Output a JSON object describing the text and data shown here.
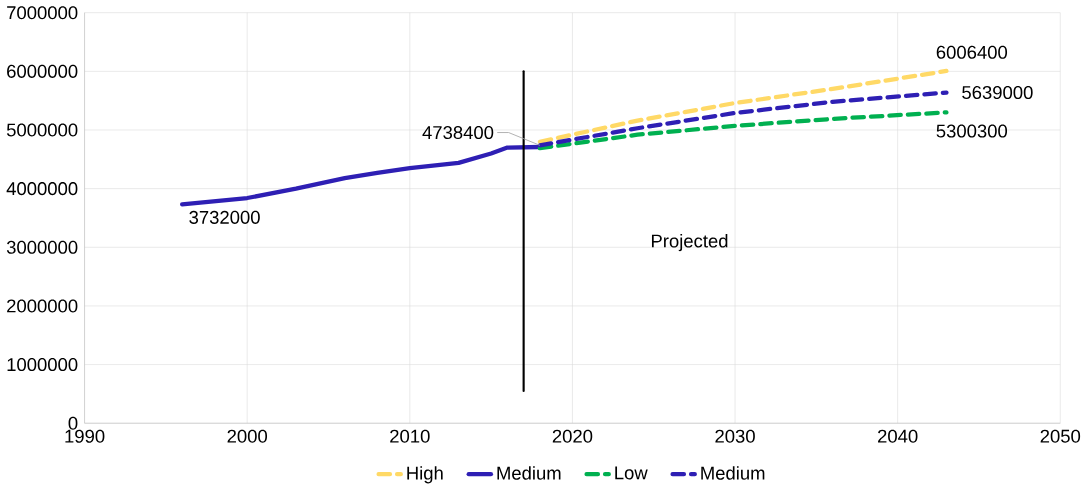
{
  "chart_data": {
    "type": "line",
    "xlim": [
      1990,
      2050
    ],
    "xticks": [
      1990,
      2000,
      2010,
      2020,
      2030,
      2040,
      2050
    ],
    "ylim": [
      0,
      7000000
    ],
    "yticks": [
      0,
      1000000,
      2000000,
      3000000,
      4000000,
      5000000,
      6000000,
      7000000
    ],
    "grid": true,
    "legend": "bottom",
    "series": [
      {
        "name": "High",
        "color": "#ffd966",
        "line_style": "dashed",
        "x": [
          2018,
          2024,
          2030,
          2036,
          2043
        ],
        "values": [
          4800000,
          5160000,
          5460000,
          5700000,
          6006400
        ]
      },
      {
        "name": "Medium",
        "color": "#2e1fb4",
        "line_style": "solid",
        "x": [
          1996,
          2000,
          2003,
          2006,
          2008,
          2010,
          2013,
          2015,
          2016,
          2018
        ],
        "values": [
          3732000,
          3840000,
          4000000,
          4180000,
          4270000,
          4350000,
          4440000,
          4600000,
          4700000,
          4710000
        ]
      },
      {
        "name": "Low",
        "color": "#00b050",
        "line_style": "dashed",
        "x": [
          2018,
          2024,
          2030,
          2036,
          2043
        ],
        "values": [
          4690000,
          4920000,
          5070000,
          5190000,
          5300300
        ]
      },
      {
        "name": "Medium",
        "color": "#2e1fb4",
        "line_style": "dashed",
        "x": [
          2018,
          2024,
          2030,
          2036,
          2043
        ],
        "values": [
          4738400,
          5030000,
          5290000,
          5480000,
          5639000
        ]
      },
      {
        "color": "#000000",
        "line_style": "solid",
        "x": [
          2017,
          2017
        ],
        "values": [
          550000,
          6000000
        ]
      }
    ],
    "annotations": [
      {
        "text": "3732000",
        "x": 1996,
        "y": 3732000
      },
      {
        "text": "4738400",
        "x": 2018,
        "y": 4738400
      },
      {
        "text": "6006400",
        "x": 2043,
        "y": 6006400
      },
      {
        "text": "5639000",
        "x": 2043,
        "y": 5639000
      },
      {
        "text": "5300300",
        "x": 2043,
        "y": 5300300
      },
      "Projected"
    ]
  }
}
